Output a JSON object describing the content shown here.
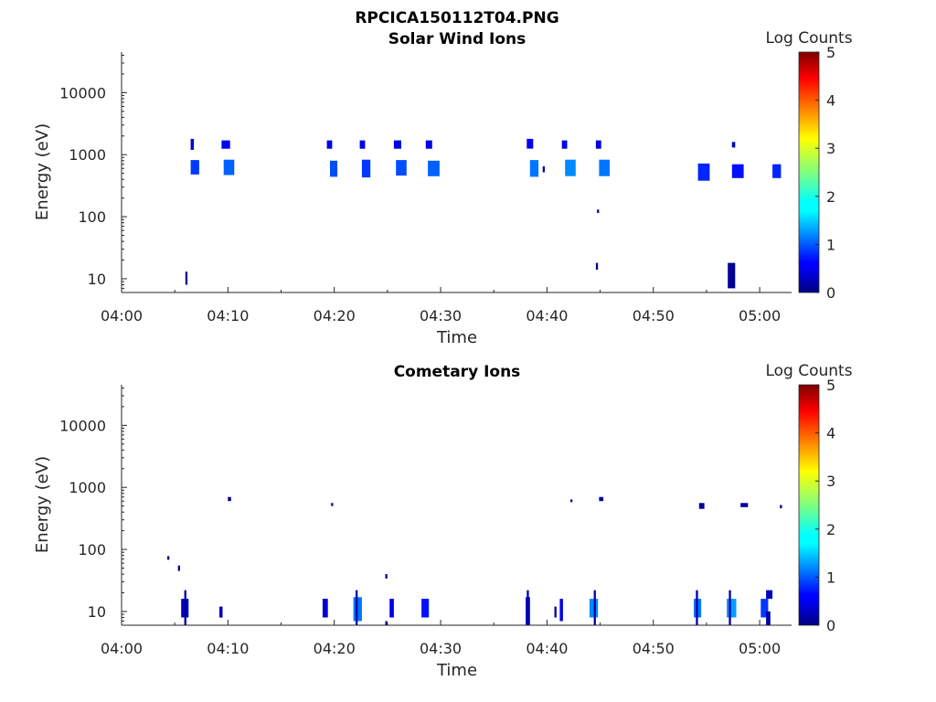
{
  "figure_title": "RPCICA150112T04.PNG",
  "chart_data": [
    {
      "type": "heatmap",
      "title": "Solar Wind Ions",
      "xlabel": "Time",
      "ylabel": "Energy (eV)",
      "x_scale": "time",
      "y_scale": "log",
      "xlim": [
        "04:00",
        "05:03"
      ],
      "ylim": [
        6,
        45000
      ],
      "x_ticks": [
        "04:00",
        "04:10",
        "04:20",
        "04:30",
        "04:40",
        "04:50",
        "05:00"
      ],
      "y_ticks": [
        "10",
        "100",
        "1000",
        "10000"
      ],
      "colorbar": {
        "label": "Log Counts",
        "min": 0,
        "max": 5,
        "ticks": [
          "0",
          "1",
          "2",
          "3",
          "4",
          "5"
        ],
        "colormap": "jet"
      },
      "cells": [
        {
          "t0": 6.0,
          "t1": 6.2,
          "e0": 8,
          "e1": 13,
          "v": 0.1
        },
        {
          "t0": 6.5,
          "t1": 6.8,
          "e0": 1200,
          "e1": 1800,
          "v": 0.4
        },
        {
          "t0": 6.5,
          "t1": 7.3,
          "e0": 480,
          "e1": 820,
          "v": 0.9
        },
        {
          "t0": 9.4,
          "t1": 10.2,
          "e0": 1250,
          "e1": 1700,
          "v": 0.6
        },
        {
          "t0": 9.6,
          "t1": 10.6,
          "e0": 470,
          "e1": 830,
          "v": 1.1
        },
        {
          "t0": 19.3,
          "t1": 19.8,
          "e0": 1250,
          "e1": 1700,
          "v": 0.5
        },
        {
          "t0": 19.6,
          "t1": 20.3,
          "e0": 440,
          "e1": 800,
          "v": 1.0
        },
        {
          "t0": 22.4,
          "t1": 22.9,
          "e0": 1250,
          "e1": 1700,
          "v": 0.5
        },
        {
          "t0": 22.6,
          "t1": 23.4,
          "e0": 430,
          "e1": 830,
          "v": 0.9
        },
        {
          "t0": 25.6,
          "t1": 26.3,
          "e0": 1250,
          "e1": 1700,
          "v": 0.5
        },
        {
          "t0": 25.8,
          "t1": 26.8,
          "e0": 460,
          "e1": 820,
          "v": 1.0
        },
        {
          "t0": 28.6,
          "t1": 29.2,
          "e0": 1250,
          "e1": 1700,
          "v": 0.5
        },
        {
          "t0": 28.8,
          "t1": 29.9,
          "e0": 450,
          "e1": 800,
          "v": 1.1
        },
        {
          "t0": 38.1,
          "t1": 38.7,
          "e0": 1250,
          "e1": 1800,
          "v": 0.6
        },
        {
          "t0": 38.4,
          "t1": 39.2,
          "e0": 440,
          "e1": 820,
          "v": 1.2
        },
        {
          "t0": 39.6,
          "t1": 39.8,
          "e0": 520,
          "e1": 650,
          "v": 0.3
        },
        {
          "t0": 41.4,
          "t1": 41.9,
          "e0": 1250,
          "e1": 1700,
          "v": 0.5
        },
        {
          "t0": 41.7,
          "t1": 42.7,
          "e0": 450,
          "e1": 830,
          "v": 1.3
        },
        {
          "t0": 44.6,
          "t1": 45.1,
          "e0": 1250,
          "e1": 1700,
          "v": 0.5
        },
        {
          "t0": 44.7,
          "t1": 44.9,
          "e0": 115,
          "e1": 130,
          "v": 0.1
        },
        {
          "t0": 44.6,
          "t1": 44.8,
          "e0": 14,
          "e1": 18,
          "v": 0.1
        },
        {
          "t0": 44.9,
          "t1": 45.9,
          "e0": 450,
          "e1": 830,
          "v": 1.2
        },
        {
          "t0": 54.2,
          "t1": 55.3,
          "e0": 380,
          "e1": 720,
          "v": 0.8
        },
        {
          "t0": 57.4,
          "t1": 57.7,
          "e0": 1300,
          "e1": 1600,
          "v": 0.3
        },
        {
          "t0": 57.4,
          "t1": 58.5,
          "e0": 420,
          "e1": 700,
          "v": 0.7
        },
        {
          "t0": 57.0,
          "t1": 57.7,
          "e0": 7,
          "e1": 18,
          "v": 0.1
        },
        {
          "t0": 61.2,
          "t1": 62.0,
          "e0": 420,
          "e1": 700,
          "v": 0.8
        }
      ]
    },
    {
      "type": "heatmap",
      "title": "Cometary Ions",
      "xlabel": "Time",
      "ylabel": "Energy (eV)",
      "x_scale": "time",
      "y_scale": "log",
      "xlim": [
        "04:00",
        "05:03"
      ],
      "ylim": [
        6,
        45000
      ],
      "x_ticks": [
        "04:00",
        "04:10",
        "04:20",
        "04:30",
        "04:40",
        "04:50",
        "05:00"
      ],
      "y_ticks": [
        "10",
        "100",
        "1000",
        "10000"
      ],
      "colorbar": {
        "label": "Log Counts",
        "min": 0,
        "max": 5,
        "ticks": [
          "0",
          "1",
          "2",
          "3",
          "4",
          "5"
        ],
        "colormap": "jet"
      },
      "cells": [
        {
          "t0": 4.3,
          "t1": 4.5,
          "e0": 68,
          "e1": 78,
          "v": 0.1
        },
        {
          "t0": 5.3,
          "t1": 5.5,
          "e0": 45,
          "e1": 55,
          "v": 0.1
        },
        {
          "t0": 5.6,
          "t1": 6.3,
          "e0": 8,
          "e1": 16,
          "v": 0.3
        },
        {
          "t0": 5.9,
          "t1": 6.1,
          "e0": 6,
          "e1": 22,
          "v": 0.1
        },
        {
          "t0": 9.2,
          "t1": 9.5,
          "e0": 8,
          "e1": 12,
          "v": 0.3
        },
        {
          "t0": 10.0,
          "t1": 10.3,
          "e0": 600,
          "e1": 700,
          "v": 0.1
        },
        {
          "t0": 18.9,
          "t1": 19.4,
          "e0": 8,
          "e1": 16,
          "v": 0.4
        },
        {
          "t0": 19.7,
          "t1": 19.9,
          "e0": 500,
          "e1": 560,
          "v": 0.1
        },
        {
          "t0": 21.8,
          "t1": 22.6,
          "e0": 7,
          "e1": 17,
          "v": 1.2
        },
        {
          "t0": 22.0,
          "t1": 22.2,
          "e0": 6,
          "e1": 22,
          "v": 0.2
        },
        {
          "t0": 24.8,
          "t1": 25.0,
          "e0": 34,
          "e1": 40,
          "v": 0.1
        },
        {
          "t0": 24.8,
          "t1": 25.0,
          "e0": 6,
          "e1": 7,
          "v": 0.1
        },
        {
          "t0": 25.2,
          "t1": 25.6,
          "e0": 8,
          "e1": 16,
          "v": 0.5
        },
        {
          "t0": 28.2,
          "t1": 28.9,
          "e0": 8,
          "e1": 16,
          "v": 0.7
        },
        {
          "t0": 38.0,
          "t1": 38.4,
          "e0": 6,
          "e1": 17,
          "v": 0.4
        },
        {
          "t0": 38.1,
          "t1": 38.3,
          "e0": 6,
          "e1": 22,
          "v": 0.2
        },
        {
          "t0": 40.7,
          "t1": 40.9,
          "e0": 8,
          "e1": 12,
          "v": 0.2
        },
        {
          "t0": 41.2,
          "t1": 41.5,
          "e0": 7,
          "e1": 16,
          "v": 0.5
        },
        {
          "t0": 42.2,
          "t1": 42.4,
          "e0": 580,
          "e1": 640,
          "v": 0.1
        },
        {
          "t0": 44.0,
          "t1": 44.8,
          "e0": 8,
          "e1": 16,
          "v": 1.3
        },
        {
          "t0": 44.4,
          "t1": 44.6,
          "e0": 6,
          "e1": 22,
          "v": 0.2
        },
        {
          "t0": 44.9,
          "t1": 45.3,
          "e0": 600,
          "e1": 700,
          "v": 0.1
        },
        {
          "t0": 53.8,
          "t1": 54.5,
          "e0": 8,
          "e1": 16,
          "v": 1.2
        },
        {
          "t0": 54.0,
          "t1": 54.2,
          "e0": 6,
          "e1": 22,
          "v": 0.2
        },
        {
          "t0": 54.3,
          "t1": 54.8,
          "e0": 450,
          "e1": 560,
          "v": 0.1
        },
        {
          "t0": 56.9,
          "t1": 57.8,
          "e0": 8,
          "e1": 16,
          "v": 1.4
        },
        {
          "t0": 57.1,
          "t1": 57.3,
          "e0": 6,
          "e1": 22,
          "v": 0.2
        },
        {
          "t0": 58.2,
          "t1": 58.9,
          "e0": 480,
          "e1": 560,
          "v": 0.1
        },
        {
          "t0": 60.1,
          "t1": 60.8,
          "e0": 8,
          "e1": 16,
          "v": 0.9
        },
        {
          "t0": 60.6,
          "t1": 61.0,
          "e0": 6,
          "e1": 10,
          "v": 0.2
        },
        {
          "t0": 60.6,
          "t1": 61.2,
          "e0": 16,
          "e1": 22,
          "v": 0.3
        },
        {
          "t0": 61.9,
          "t1": 62.1,
          "e0": 460,
          "e1": 520,
          "v": 0.1
        }
      ]
    }
  ]
}
